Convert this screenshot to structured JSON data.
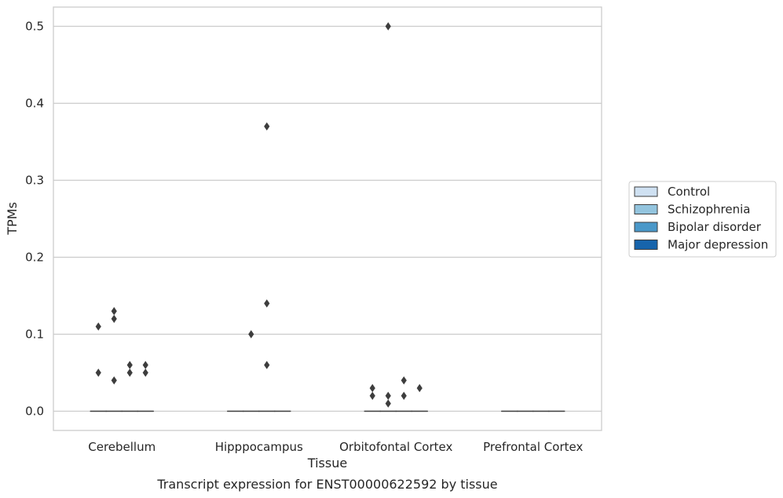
{
  "chart_data": {
    "type": "box",
    "title": "",
    "xlabel": "Tissue",
    "ylabel": "TPMs",
    "caption": "Transcript expression for ENST00000622592 by tissue",
    "categories": [
      "Cerebellum",
      "Hipppocampus",
      "Orbitofontal Cortex",
      "Prefrontal Cortex"
    ],
    "ylim": [
      -0.025,
      0.525
    ],
    "yticks": [
      0.0,
      0.1,
      0.2,
      0.3,
      0.4,
      0.5
    ],
    "ytick_labels": [
      "0.0",
      "0.1",
      "0.2",
      "0.3",
      "0.4",
      "0.5"
    ],
    "grid": true,
    "legend_position": "right",
    "series": [
      {
        "name": "Control",
        "color": "#cfe1f2",
        "boxes": [
          {
            "category": "Cerebellum",
            "q1": 0,
            "median": 0,
            "q3": 0,
            "whisker_low": 0,
            "whisker_high": 0,
            "outliers": [
              0.11,
              0.05
            ]
          },
          {
            "category": "Hipppocampus",
            "q1": 0,
            "median": 0,
            "q3": 0,
            "whisker_low": 0,
            "whisker_high": 0,
            "outliers": []
          },
          {
            "category": "Orbitofontal Cortex",
            "q1": 0,
            "median": 0,
            "q3": 0,
            "whisker_low": 0,
            "whisker_high": 0,
            "outliers": [
              0.03,
              0.02
            ]
          },
          {
            "category": "Prefrontal Cortex",
            "q1": 0,
            "median": 0,
            "q3": 0,
            "whisker_low": 0,
            "whisker_high": 0,
            "outliers": []
          }
        ]
      },
      {
        "name": "Schizophrenia",
        "color": "#93c4de",
        "boxes": [
          {
            "category": "Cerebellum",
            "q1": 0,
            "median": 0,
            "q3": 0,
            "whisker_low": 0,
            "whisker_high": 0,
            "outliers": [
              0.13,
              0.12,
              0.04
            ]
          },
          {
            "category": "Hipppocampus",
            "q1": 0,
            "median": 0,
            "q3": 0,
            "whisker_low": 0,
            "whisker_high": 0,
            "outliers": [
              0.1
            ]
          },
          {
            "category": "Orbitofontal Cortex",
            "q1": 0,
            "median": 0,
            "q3": 0,
            "whisker_low": 0,
            "whisker_high": 0,
            "outliers": [
              0.5,
              0.02,
              0.01
            ]
          },
          {
            "category": "Prefrontal Cortex",
            "q1": 0,
            "median": 0,
            "q3": 0,
            "whisker_low": 0,
            "whisker_high": 0,
            "outliers": []
          }
        ]
      },
      {
        "name": "Bipolar disorder",
        "color": "#4a98c9",
        "boxes": [
          {
            "category": "Cerebellum",
            "q1": 0,
            "median": 0,
            "q3": 0,
            "whisker_low": 0,
            "whisker_high": 0,
            "outliers": [
              0.06,
              0.05
            ]
          },
          {
            "category": "Hipppocampus",
            "q1": 0,
            "median": 0,
            "q3": 0,
            "whisker_low": 0,
            "whisker_high": 0,
            "outliers": [
              0.37,
              0.14,
              0.06
            ]
          },
          {
            "category": "Orbitofontal Cortex",
            "q1": 0,
            "median": 0,
            "q3": 0,
            "whisker_low": 0,
            "whisker_high": 0,
            "outliers": [
              0.04,
              0.02
            ]
          },
          {
            "category": "Prefrontal Cortex",
            "q1": 0,
            "median": 0,
            "q3": 0,
            "whisker_low": 0,
            "whisker_high": 0,
            "outliers": []
          }
        ]
      },
      {
        "name": "Major depression",
        "color": "#1764ab",
        "boxes": [
          {
            "category": "Cerebellum",
            "q1": 0,
            "median": 0,
            "q3": 0,
            "whisker_low": 0,
            "whisker_high": 0,
            "outliers": [
              0.06,
              0.05
            ]
          },
          {
            "category": "Hipppocampus",
            "q1": 0,
            "median": 0,
            "q3": 0,
            "whisker_low": 0,
            "whisker_high": 0,
            "outliers": []
          },
          {
            "category": "Orbitofontal Cortex",
            "q1": 0,
            "median": 0,
            "q3": 0,
            "whisker_low": 0,
            "whisker_high": 0,
            "outliers": [
              0.03
            ]
          },
          {
            "category": "Prefrontal Cortex",
            "q1": 0,
            "median": 0,
            "q3": 0,
            "whisker_low": 0,
            "whisker_high": 0,
            "outliers": []
          }
        ]
      }
    ]
  }
}
